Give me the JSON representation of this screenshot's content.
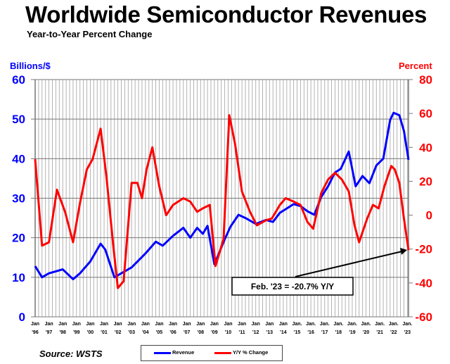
{
  "title": "Worldwide Semiconductor Revenues",
  "subtitle": "Year-to-Year Percent Change",
  "source": "Source: WSTS",
  "chart_data": {
    "type": "line",
    "left_axis": {
      "label": "Billions/$",
      "range": [
        0,
        60
      ],
      "ticks": [
        "0",
        "10",
        "20",
        "30",
        "40",
        "50",
        "60"
      ],
      "color": "#0000ff"
    },
    "right_axis": {
      "label": "Percent",
      "range": [
        -60,
        80
      ],
      "ticks": [
        "-60",
        "-40",
        "-20",
        "0",
        "20",
        "40",
        "60",
        "80"
      ],
      "color": "#ff0000"
    },
    "x_ticks": [
      [
        "Jan",
        "'96"
      ],
      [
        "Jan",
        "'97"
      ],
      [
        "Jan",
        "'98"
      ],
      [
        "Jan",
        "'99"
      ],
      [
        "Jan",
        "'00"
      ],
      [
        "Jan",
        "'01"
      ],
      [
        "Jan",
        "'02"
      ],
      [
        "Jan",
        "'03"
      ],
      [
        "Jan",
        "'04"
      ],
      [
        "Jan",
        "'05"
      ],
      [
        "Jan",
        "'06"
      ],
      [
        "Jan",
        "'07"
      ],
      [
        "Jan",
        "'08"
      ],
      [
        "Jan",
        "'09"
      ],
      [
        "Jan",
        "'10"
      ],
      [
        "Jan",
        "'11"
      ],
      [
        "Jan",
        "'12"
      ],
      [
        "Jan",
        "'13"
      ],
      [
        "Jan",
        "'14"
      ],
      [
        "Jan.",
        "'15"
      ],
      [
        "Jan.",
        "'16"
      ],
      [
        "Jan.",
        "'17"
      ],
      [
        "Jan.",
        "'18"
      ],
      [
        "Jan.",
        "'19"
      ],
      [
        "Jan.",
        "'20"
      ],
      [
        "Jan.",
        "'21"
      ],
      [
        "Jan.",
        "'22"
      ],
      [
        "Jan.",
        "'23"
      ]
    ],
    "grid": true,
    "legend_placement": "bottom",
    "series": [
      {
        "name": "Revenue",
        "axis": "left",
        "color": "#0000ff",
        "x": [
          "1996-01",
          "1996-07",
          "1997-01",
          "1997-07",
          "1998-01",
          "1998-10",
          "1999-04",
          "2000-01",
          "2000-10",
          "2001-02",
          "2001-10",
          "2002-04",
          "2003-01",
          "2004-01",
          "2004-10",
          "2005-04",
          "2006-01",
          "2006-10",
          "2007-04",
          "2007-10",
          "2008-03",
          "2008-07",
          "2009-01",
          "2009-10",
          "2010-03",
          "2010-10",
          "2011-04",
          "2012-01",
          "2012-10",
          "2013-04",
          "2013-10",
          "2014-04",
          "2014-10",
          "2015-04",
          "2015-10",
          "2016-04",
          "2016-10",
          "2017-04",
          "2017-10",
          "2018-03",
          "2018-10",
          "2019-04",
          "2019-10",
          "2020-04",
          "2020-10",
          "2021-04",
          "2021-10",
          "2022-01",
          "2022-06",
          "2022-10",
          "2023-02"
        ],
        "values": [
          12.8,
          10,
          11,
          11.5,
          12,
          9.5,
          11,
          14,
          18.5,
          17,
          10,
          11,
          12.5,
          16,
          19,
          18,
          20.5,
          22.5,
          20,
          22.5,
          21,
          23,
          13.3,
          19.6,
          22.8,
          25.8,
          25,
          23.5,
          24.5,
          24,
          26.3,
          27.4,
          28.5,
          28,
          26.7,
          25.8,
          30.3,
          33,
          36.5,
          37.4,
          41.8,
          33,
          35.6,
          33.8,
          38.3,
          40,
          49.8,
          51.6,
          51,
          47,
          39.7
        ]
      },
      {
        "name": "Y/Y % Change",
        "axis": "right",
        "color": "#ff0000",
        "x": [
          "1996-01",
          "1996-07",
          "1997-01",
          "1997-08",
          "1998-03",
          "1998-10",
          "1999-04",
          "1999-10",
          "2000-03",
          "2000-10",
          "2001-03",
          "2001-09",
          "2002-01",
          "2002-06",
          "2003-01",
          "2003-06",
          "2003-10",
          "2004-02",
          "2004-07",
          "2005-01",
          "2005-07",
          "2006-01",
          "2006-10",
          "2007-04",
          "2007-10",
          "2008-03",
          "2008-09",
          "2009-02",
          "2009-09",
          "2010-02",
          "2010-07",
          "2011-01",
          "2011-08",
          "2012-02",
          "2012-10",
          "2013-03",
          "2013-10",
          "2014-03",
          "2014-10",
          "2015-04",
          "2015-10",
          "2016-03",
          "2016-10",
          "2017-04",
          "2017-10",
          "2018-04",
          "2018-10",
          "2019-03",
          "2019-07",
          "2020-02",
          "2020-07",
          "2020-12",
          "2021-05",
          "2021-11",
          "2022-02",
          "2022-06",
          "2022-10",
          "2023-02"
        ],
        "values": [
          33,
          -18,
          -16,
          15,
          2,
          -16,
          7,
          27,
          33,
          51,
          23,
          -18,
          -43,
          -39,
          19,
          19,
          10,
          27,
          40,
          17,
          0,
          6,
          10,
          8,
          2,
          4,
          6,
          -30,
          -14,
          59,
          42,
          14,
          2,
          -6,
          -3,
          -2,
          6,
          10,
          8,
          6,
          -4,
          -8,
          13,
          21,
          25,
          21,
          14,
          -6,
          -16,
          -2,
          6,
          4,
          17,
          29,
          27,
          19,
          -2,
          -20.7
        ]
      }
    ],
    "annotation": "Feb. '23 = -20.7% Y/Y"
  }
}
